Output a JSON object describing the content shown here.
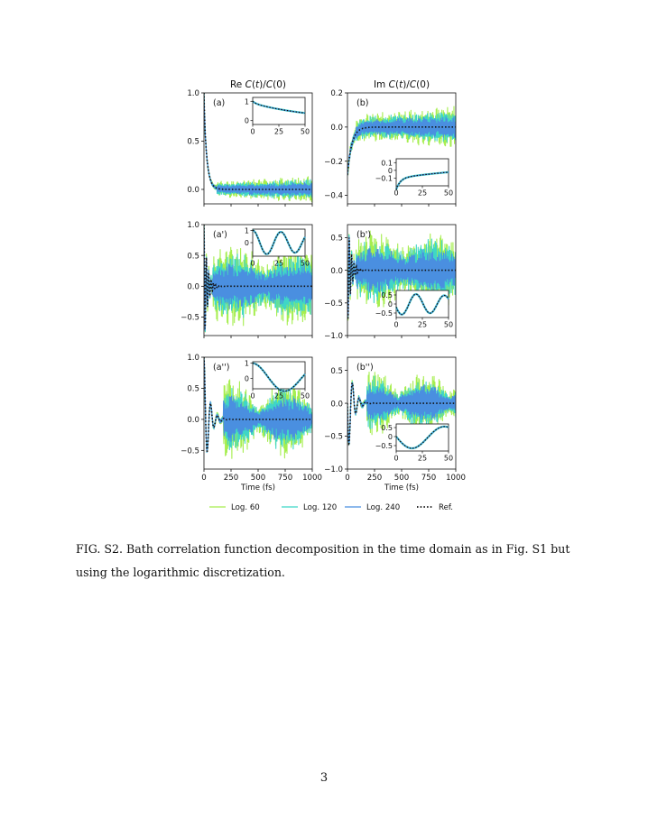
{
  "colors": {
    "log60": "#a6ee4f",
    "log120": "#3fd6c6",
    "log240": "#4a8fe0",
    "ref": "#111111"
  },
  "figure": {
    "col_titles": [
      "Re C(t)/C(0)",
      "Im C(t)/C(0)"
    ],
    "xlabel": "Time (fs)",
    "legend": [
      {
        "key": "log60",
        "label": "Log. 60",
        "style": "solid"
      },
      {
        "key": "log120",
        "label": "Log. 120",
        "style": "solid"
      },
      {
        "key": "log240",
        "label": "Log. 240",
        "style": "solid"
      },
      {
        "key": "ref",
        "label": "Ref.",
        "style": "dotted"
      }
    ]
  },
  "chart_data": [
    {
      "type": "line",
      "panel": "(a)",
      "kind": "relax",
      "xlim": [
        0,
        1000
      ],
      "ylim": [
        -0.15,
        1.0
      ],
      "yticks": [
        0.0,
        0.5,
        1.0
      ],
      "xticks": [
        0,
        250,
        500,
        750,
        1000
      ],
      "show_xticklabels": false,
      "inset": {
        "xlim": [
          0,
          50
        ],
        "ylim": [
          -0.2,
          1.2
        ],
        "yticks": [
          0,
          1
        ],
        "xticks": [
          0,
          25,
          50
        ],
        "kind": "slowdecay",
        "loc": "upper-right"
      }
    },
    {
      "type": "line",
      "panel": "(b)",
      "kind": "imagrise",
      "xlim": [
        0,
        1000
      ],
      "ylim": [
        -0.45,
        0.2
      ],
      "yticks": [
        -0.4,
        -0.2,
        0.0,
        0.2
      ],
      "xticks": [
        0,
        250,
        500,
        750,
        1000
      ],
      "show_xticklabels": false,
      "inset": {
        "xlim": [
          0,
          50
        ],
        "ylim": [
          -0.2,
          0.15
        ],
        "yticks": [
          -0.1,
          0.0,
          0.1
        ],
        "xticks": [
          0,
          25,
          50
        ],
        "kind": "imaginset",
        "loc": "lower-right"
      }
    },
    {
      "type": "line",
      "panel": "(a')",
      "kind": "fastosc",
      "xlim": [
        0,
        1000
      ],
      "ylim": [
        -0.8,
        1.0
      ],
      "yticks": [
        -0.5,
        0.0,
        0.5,
        1.0
      ],
      "xticks": [
        0,
        250,
        500,
        750,
        1000
      ],
      "show_xticklabels": false,
      "inset": {
        "xlim": [
          0,
          50
        ],
        "ylim": [
          -1.1,
          1.1
        ],
        "yticks": [
          0,
          1
        ],
        "xticks": [
          0,
          25,
          50
        ],
        "kind": "cosinset",
        "loc": "upper-right"
      }
    },
    {
      "type": "line",
      "panel": "(b')",
      "kind": "fastosc_im",
      "xlim": [
        0,
        1000
      ],
      "ylim": [
        -1.0,
        0.7
      ],
      "yticks": [
        -1.0,
        -0.5,
        0.0,
        0.5
      ],
      "xticks": [
        0,
        250,
        500,
        750,
        1000
      ],
      "show_xticklabels": false,
      "inset": {
        "xlim": [
          0,
          50
        ],
        "ylim": [
          -0.75,
          0.75
        ],
        "yticks": [
          -0.5,
          0.0,
          0.5
        ],
        "xticks": [
          0,
          25,
          50
        ],
        "kind": "sininset",
        "loc": "lower-right"
      }
    },
    {
      "type": "line",
      "panel": "(a'')",
      "kind": "slowosc",
      "xlim": [
        0,
        1000
      ],
      "ylim": [
        -0.8,
        1.0
      ],
      "yticks": [
        -0.5,
        0.0,
        0.5,
        1.0
      ],
      "xticks": [
        0,
        250,
        500,
        750,
        1000
      ],
      "show_xticklabels": true,
      "inset": {
        "xlim": [
          0,
          50
        ],
        "ylim": [
          -0.7,
          1.1
        ],
        "yticks": [
          0,
          1
        ],
        "xticks": [
          0,
          25,
          50
        ],
        "kind": "slowcosinset",
        "loc": "upper-right"
      }
    },
    {
      "type": "line",
      "panel": "(b'')",
      "kind": "slowosc_im",
      "xlim": [
        0,
        1000
      ],
      "ylim": [
        -1.0,
        0.7
      ],
      "yticks": [
        -1.0,
        -0.5,
        0.0,
        0.5
      ],
      "xticks": [
        0,
        250,
        500,
        750,
        1000
      ],
      "show_xticklabels": true,
      "inset": {
        "xlim": [
          0,
          50
        ],
        "ylim": [
          -0.8,
          0.7
        ],
        "yticks": [
          -0.5,
          0.0,
          0.5
        ],
        "xticks": [
          0,
          25,
          50
        ],
        "kind": "slowsininset",
        "loc": "lower-right"
      }
    }
  ],
  "caption": "FIG. S2. Bath correlation function decomposition in the time domain as in Fig. S1 but using the logarithmic discretization.",
  "page_number": "3"
}
